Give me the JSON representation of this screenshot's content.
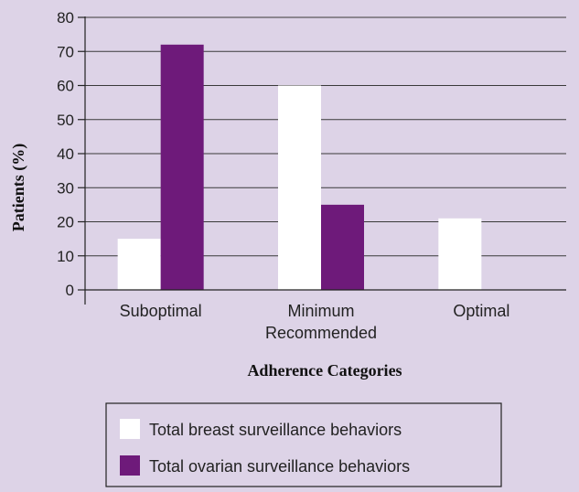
{
  "chart_data": {
    "type": "bar",
    "categories": [
      [
        "Suboptimal"
      ],
      [
        "Minimum",
        "Recommended"
      ],
      [
        "Optimal"
      ]
    ],
    "series": [
      {
        "name": "Total breast surveillance behaviors",
        "values": [
          15,
          60,
          21
        ],
        "color": "#ffffff"
      },
      {
        "name": "Total ovarian surveillance behaviors",
        "values": [
          72,
          25,
          0
        ],
        "color": "#6e1a7a"
      }
    ],
    "xlabel": "Adherence Categories",
    "ylabel": "Patients (%)",
    "ylim": [
      0,
      80
    ],
    "yticks": [
      0,
      10,
      20,
      30,
      40,
      50,
      60,
      70,
      80
    ],
    "grid": true,
    "legend_position": "bottom"
  },
  "colors": {
    "background": "#ddd3e7",
    "gridline": "#3a3a3a",
    "axis": "#222222"
  }
}
